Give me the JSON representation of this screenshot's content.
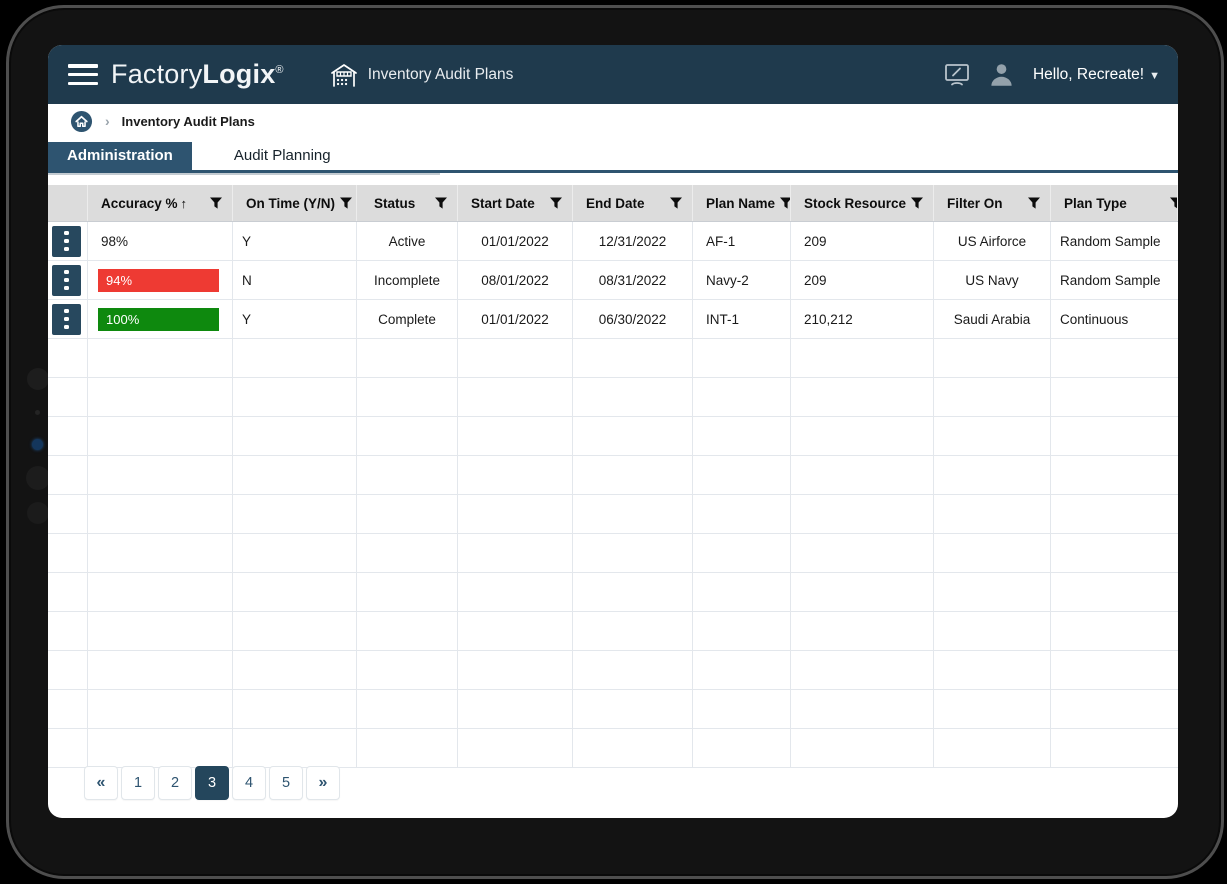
{
  "app": {
    "brand": {
      "name_light": "Factory",
      "name_bold": "Logix",
      "trademark": "®"
    },
    "module_title": "Inventory Audit Plans",
    "user_greeting": "Hello, Recreate!",
    "caret_glyph": "▼"
  },
  "breadcrumb": {
    "separator": "›",
    "current": "Inventory Audit Plans"
  },
  "tabs": [
    {
      "label": "Administration",
      "active": true
    },
    {
      "label": "Audit Planning",
      "active": false
    }
  ],
  "table": {
    "columns": [
      {
        "label": "Accuracy %",
        "sort": "↑",
        "filter": true
      },
      {
        "label": "On Time (Y/N)",
        "filter": true
      },
      {
        "label": "Status",
        "filter": true
      },
      {
        "label": "Start Date",
        "filter": true
      },
      {
        "label": "End Date",
        "filter": true
      },
      {
        "label": "Plan Name",
        "filter": true
      },
      {
        "label": "Stock Resource",
        "filter": true
      },
      {
        "label": "Filter On",
        "filter": true
      },
      {
        "label": "Plan Type",
        "filter": true
      }
    ],
    "rows": [
      {
        "accuracy": "98%",
        "accuracy_class": "pad",
        "on_time": "Y",
        "status": "Active",
        "start_date": "01/01/2022",
        "end_date": "12/31/2022",
        "plan_name": "AF-1",
        "stock_resource": "209",
        "filter_on": "US Airforce",
        "plan_type": "Random Sample"
      },
      {
        "accuracy": "94%",
        "accuracy_class": "accbar red",
        "on_time": "N",
        "status": "Incomplete",
        "start_date": "08/01/2022",
        "end_date": "08/31/2022",
        "plan_name": "Navy-2",
        "stock_resource": "209",
        "filter_on": "US Navy",
        "plan_type": "Random Sample"
      },
      {
        "accuracy": "100%",
        "accuracy_class": "accbar green",
        "on_time": "Y",
        "status": "Complete",
        "start_date": "01/01/2022",
        "end_date": "06/30/2022",
        "plan_name": "INT-1",
        "stock_resource": "210,212",
        "filter_on": "Saudi Arabia",
        "plan_type": "Continuous"
      }
    ],
    "empty_row_count": 11
  },
  "pagination": {
    "prev": "«",
    "next": "»",
    "pages": [
      "1",
      "2",
      "3",
      "4",
      "5"
    ],
    "active_page": "3"
  },
  "colors": {
    "appbar": "#1f3a4d",
    "accent": "#2e5470",
    "kebab": "#27485e",
    "accuracy_red": "#ee3a33",
    "accuracy_green": "#0e890e",
    "header_bg": "#dcdcdc",
    "grid_line": "#e3e7ec"
  }
}
